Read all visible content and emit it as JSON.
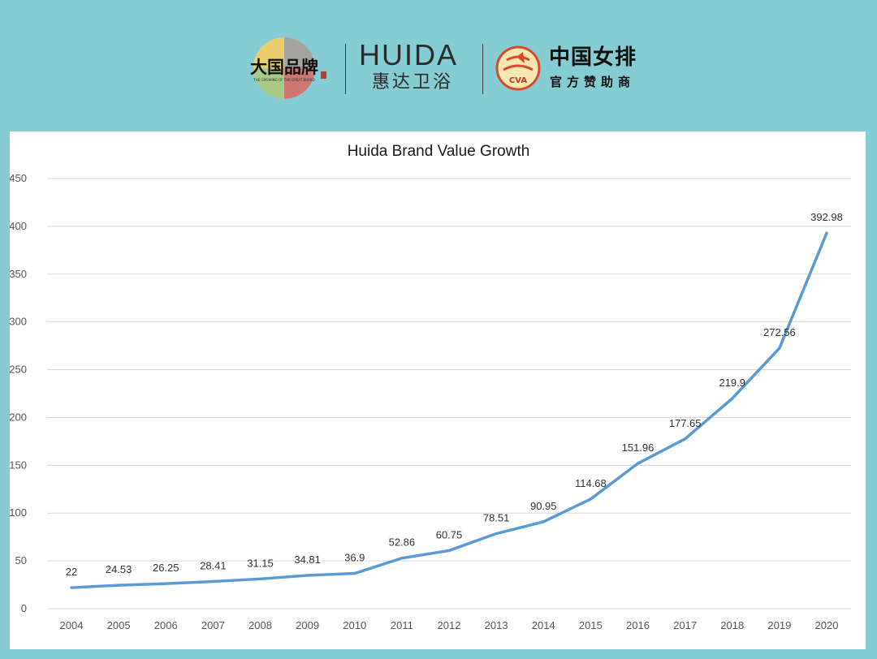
{
  "header": {
    "seal_text": "大国品牌",
    "seal_subtext": "THE GROWING OF THE GREAT BRAND",
    "brand_en": "HUIDA",
    "brand_cn": "惠达卫浴",
    "sponsor_title": "中国女排",
    "sponsor_sub": "官方赞助商",
    "sponsor_badge": "CVA"
  },
  "colors": {
    "background": "#85cdd3",
    "line": "#5b9bd5",
    "grid": "#d9d9d9"
  },
  "chart_data": {
    "type": "line",
    "title": "Huida Brand Value Growth",
    "xlabel": "",
    "ylabel": "",
    "categories": [
      "2004",
      "2005",
      "2006",
      "2007",
      "2008",
      "2009",
      "2010",
      "2011",
      "2012",
      "2013",
      "2014",
      "2015",
      "2016",
      "2017",
      "2018",
      "2019",
      "2020"
    ],
    "series": [
      {
        "values": [
          22,
          24.53,
          26.25,
          28.41,
          31.15,
          34.81,
          36.9,
          52.86,
          60.75,
          78.51,
          90.95,
          114.68,
          151.96,
          177.65,
          219.9,
          272.56,
          392.98
        ],
        "labels": [
          "22",
          "24.53",
          "26.25",
          "28.41",
          "31.15",
          "34.81",
          "36.9",
          "52.86",
          "60.75",
          "78.51",
          "90.95",
          "114.68",
          "151.96",
          "177.65",
          "219.9",
          "272.56",
          "392.98"
        ]
      }
    ],
    "yticks": [
      "0",
      "50",
      "100",
      "150",
      "200",
      "250",
      "300",
      "350",
      "400",
      "450"
    ],
    "ylim": [
      0,
      450
    ],
    "grid": true,
    "legend": "none"
  }
}
